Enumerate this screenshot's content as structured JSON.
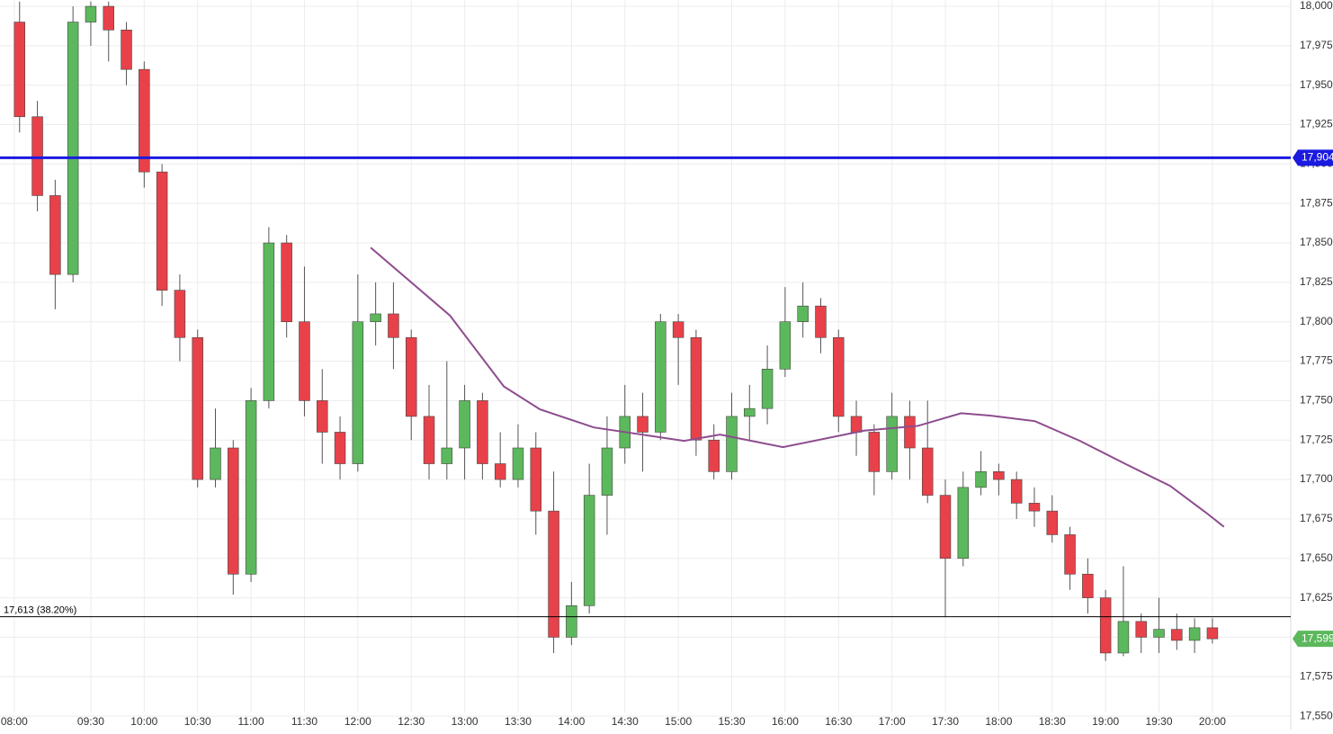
{
  "chart_data": {
    "type": "candlestick",
    "x": [
      -4,
      -3,
      -2,
      -1,
      0,
      1,
      2,
      3,
      4,
      5,
      6,
      7,
      8,
      9,
      10,
      11,
      12,
      13,
      14,
      15,
      16,
      17,
      18,
      19,
      20,
      21,
      22,
      23,
      24,
      25,
      26,
      27,
      28,
      29,
      30,
      31,
      32,
      33,
      34,
      35,
      36,
      37,
      38,
      39,
      40,
      41,
      42,
      43,
      44,
      45,
      46,
      47,
      48,
      49,
      50,
      51,
      52,
      53,
      54,
      55,
      56,
      57,
      58,
      59,
      60,
      61,
      62,
      63
    ],
    "open": [
      17990,
      17930,
      17880,
      17830,
      17990,
      18000,
      17985,
      17960,
      17895,
      17820,
      17790,
      17700,
      17720,
      17640,
      17750,
      17850,
      17800,
      17750,
      17730,
      17710,
      17800,
      17805,
      17790,
      17740,
      17710,
      17720,
      17750,
      17710,
      17700,
      17720,
      17680,
      17600,
      17620,
      17690,
      17720,
      17740,
      17730,
      17800,
      17790,
      17725,
      17705,
      17740,
      17745,
      17770,
      17800,
      17810,
      17790,
      17740,
      17730,
      17705,
      17740,
      17720,
      17690,
      17650,
      17695,
      17705,
      17700,
      17685,
      17680,
      17665,
      17640,
      17625,
      17590,
      17610,
      17600,
      17605,
      17598,
      17606
    ],
    "high": [
      18003,
      17940,
      17890,
      18000,
      18003,
      18003,
      17990,
      17965,
      17900,
      17830,
      17795,
      17745,
      17725,
      17758,
      17860,
      17855,
      17835,
      17770,
      17740,
      17830,
      17825,
      17825,
      17795,
      17760,
      17775,
      17760,
      17755,
      17730,
      17735,
      17730,
      17705,
      17635,
      17710,
      17740,
      17760,
      17755,
      17805,
      17805,
      17795,
      17735,
      17755,
      17760,
      17785,
      17822,
      17825,
      17815,
      17795,
      17750,
      17735,
      17755,
      17750,
      17750,
      17700,
      17705,
      17718,
      17710,
      17705,
      17695,
      17690,
      17670,
      17650,
      17630,
      17645,
      17615,
      17625,
      17615,
      17612,
      17612
    ],
    "low": [
      17920,
      17870,
      17808,
      17825,
      17975,
      17965,
      17950,
      17885,
      17810,
      17775,
      17695,
      17695,
      17627,
      17635,
      17745,
      17790,
      17740,
      17710,
      17700,
      17705,
      17785,
      17770,
      17725,
      17700,
      17700,
      17700,
      17700,
      17695,
      17695,
      17665,
      17590,
      17595,
      17615,
      17665,
      17710,
      17705,
      17725,
      17760,
      17715,
      17700,
      17700,
      17725,
      17735,
      17765,
      17790,
      17780,
      17730,
      17715,
      17690,
      17700,
      17700,
      17685,
      17613,
      17645,
      17690,
      17690,
      17675,
      17670,
      17660,
      17630,
      17615,
      17585,
      17588,
      17590,
      17590,
      17592,
      17590,
      17596
    ],
    "close": [
      17930,
      17880,
      17830,
      17990,
      18000,
      17985,
      17960,
      17895,
      17820,
      17790,
      17700,
      17720,
      17640,
      17750,
      17850,
      17800,
      17750,
      17730,
      17710,
      17800,
      17805,
      17790,
      17740,
      17710,
      17720,
      17750,
      17710,
      17700,
      17720,
      17680,
      17600,
      17620,
      17690,
      17720,
      17740,
      17730,
      17800,
      17790,
      17725,
      17705,
      17740,
      17745,
      17770,
      17800,
      17810,
      17790,
      17740,
      17730,
      17705,
      17740,
      17720,
      17690,
      17650,
      17695,
      17705,
      17700,
      17685,
      17680,
      17665,
      17640,
      17625,
      17590,
      17610,
      17600,
      17605,
      17598,
      17606,
      17599
    ],
    "up_color": "#5cb85c",
    "down_color": "#e8414a",
    "overlay": {
      "color": "#8e4c8e",
      "x": [
        15.72,
        20.17,
        23.2,
        25.23,
        28.26,
        33.32,
        35.34,
        38.88,
        43.43,
        46.46,
        48.89,
        50.51,
        53.03,
        55.56,
        58.09,
        60.62,
        62.64,
        63.65
      ],
      "values": [
        17847,
        17804,
        17759,
        17744.5,
        17733,
        17724.5,
        17728.5,
        17720.5,
        17731,
        17734,
        17742,
        17740.5,
        17737,
        17724.5,
        17710,
        17696,
        17679,
        17670
      ]
    },
    "levels": [
      {
        "value": 17904,
        "label": "17,904",
        "color": "#1a1ae0"
      },
      {
        "value": 17613,
        "label": "17,613 (38.20%)",
        "color": "#000000"
      }
    ],
    "last_price": {
      "value": 17599,
      "label": "17,599",
      "color": "#5cb85c"
    },
    "xlim": [
      -5.1,
      67.4
    ],
    "ylim": [
      17541.5,
      18004
    ],
    "xticks": [
      {
        "value": -4.3,
        "label": "08:00"
      },
      {
        "value": 0,
        "label": "09:30"
      },
      {
        "value": 3,
        "label": "10:00"
      },
      {
        "value": 6,
        "label": "10:30"
      },
      {
        "value": 9,
        "label": "11:00"
      },
      {
        "value": 12,
        "label": "11:30"
      },
      {
        "value": 15,
        "label": "12:00"
      },
      {
        "value": 18,
        "label": "12:30"
      },
      {
        "value": 21,
        "label": "13:00"
      },
      {
        "value": 24,
        "label": "13:30"
      },
      {
        "value": 27,
        "label": "14:00"
      },
      {
        "value": 30,
        "label": "14:30"
      },
      {
        "value": 33,
        "label": "15:00"
      },
      {
        "value": 36,
        "label": "15:30"
      },
      {
        "value": 39,
        "label": "16:00"
      },
      {
        "value": 42,
        "label": "16:30"
      },
      {
        "value": 45,
        "label": "17:00"
      },
      {
        "value": 48,
        "label": "17:30"
      },
      {
        "value": 51,
        "label": "18:00"
      },
      {
        "value": 54,
        "label": "18:30"
      },
      {
        "value": 57,
        "label": "19:00"
      },
      {
        "value": 60,
        "label": "19:30"
      },
      {
        "value": 63,
        "label": "20:00"
      }
    ],
    "yticks": [
      {
        "value": 17550,
        "label": "17,550"
      },
      {
        "value": 17575,
        "label": "17,575"
      },
      {
        "value": 17600,
        "label": "17,600"
      },
      {
        "value": 17625,
        "label": "17,625"
      },
      {
        "value": 17650,
        "label": "17,650"
      },
      {
        "value": 17675,
        "label": "17,675"
      },
      {
        "value": 17700,
        "label": "17,700"
      },
      {
        "value": 17725,
        "label": "17,725"
      },
      {
        "value": 17750,
        "label": "17,750"
      },
      {
        "value": 17775,
        "label": "17,775"
      },
      {
        "value": 17800,
        "label": "17,800"
      },
      {
        "value": 17825,
        "label": "17,825"
      },
      {
        "value": 17850,
        "label": "17,850"
      },
      {
        "value": 17875,
        "label": "17,875"
      },
      {
        "value": 17900,
        "label": "17,900"
      },
      {
        "value": 17925,
        "label": "17,925"
      },
      {
        "value": 17950,
        "label": "17,950"
      },
      {
        "value": 17975,
        "label": "17,975"
      },
      {
        "value": 18000,
        "label": "18,000"
      }
    ],
    "grid": true
  }
}
